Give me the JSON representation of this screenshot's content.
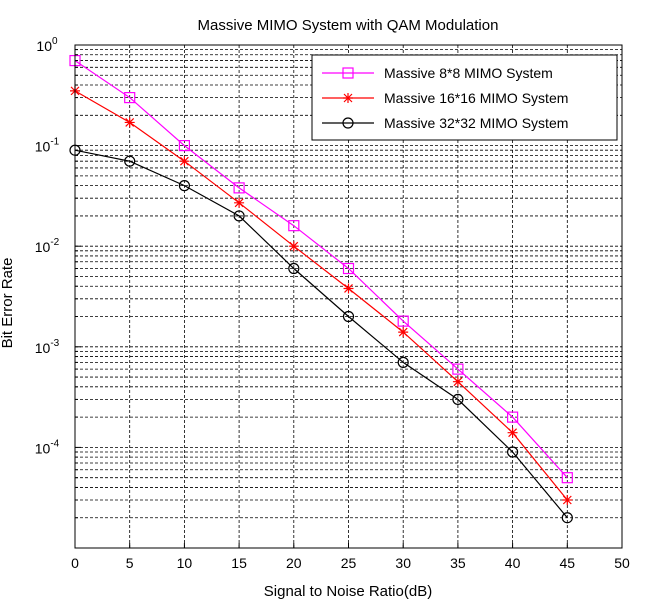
{
  "chart_data": {
    "type": "line",
    "title": "Massive MIMO System with QAM Modulation",
    "xlabel": "Signal to Noise Ratio(dB)",
    "ylabel": "Bit Error Rate",
    "xscale": "linear",
    "yscale": "log",
    "xlim": [
      0,
      50
    ],
    "ylim": [
      1e-05,
      1
    ],
    "xticks": [
      "0",
      "5",
      "10",
      "15",
      "20",
      "25",
      "30",
      "35",
      "40",
      "45",
      "50"
    ],
    "yticks": [
      {
        "base": "10",
        "exp": "0"
      },
      {
        "base": "10",
        "exp": "-1"
      },
      {
        "base": "10",
        "exp": "-2"
      },
      {
        "base": "10",
        "exp": "-3"
      },
      {
        "base": "10",
        "exp": "-4"
      }
    ],
    "grid": true,
    "legend_position": "top-right",
    "series": [
      {
        "name": "Massive 8*8 MIMO System",
        "color": "#ff00ff",
        "marker": "square",
        "x": [
          0,
          5,
          10,
          15,
          20,
          25,
          30,
          35,
          40,
          45
        ],
        "y": [
          0.7,
          0.3,
          0.1,
          0.038,
          0.016,
          0.006,
          0.0018,
          0.0006,
          0.0002,
          5e-05
        ]
      },
      {
        "name": "Massive 16*16 MIMO System",
        "color": "#ff0000",
        "marker": "star",
        "x": [
          0,
          5,
          10,
          15,
          20,
          25,
          30,
          35,
          40,
          45
        ],
        "y": [
          0.35,
          0.17,
          0.07,
          0.027,
          0.01,
          0.0038,
          0.0014,
          0.00045,
          0.00014,
          3e-05
        ]
      },
      {
        "name": "Massive 32*32 MIMO System",
        "color": "#000000",
        "marker": "circle",
        "x": [
          0,
          5,
          10,
          15,
          20,
          25,
          30,
          35,
          40,
          45
        ],
        "y": [
          0.09,
          0.07,
          0.04,
          0.02,
          0.006,
          0.002,
          0.0007,
          0.0003,
          9e-05,
          2e-05
        ]
      }
    ]
  }
}
